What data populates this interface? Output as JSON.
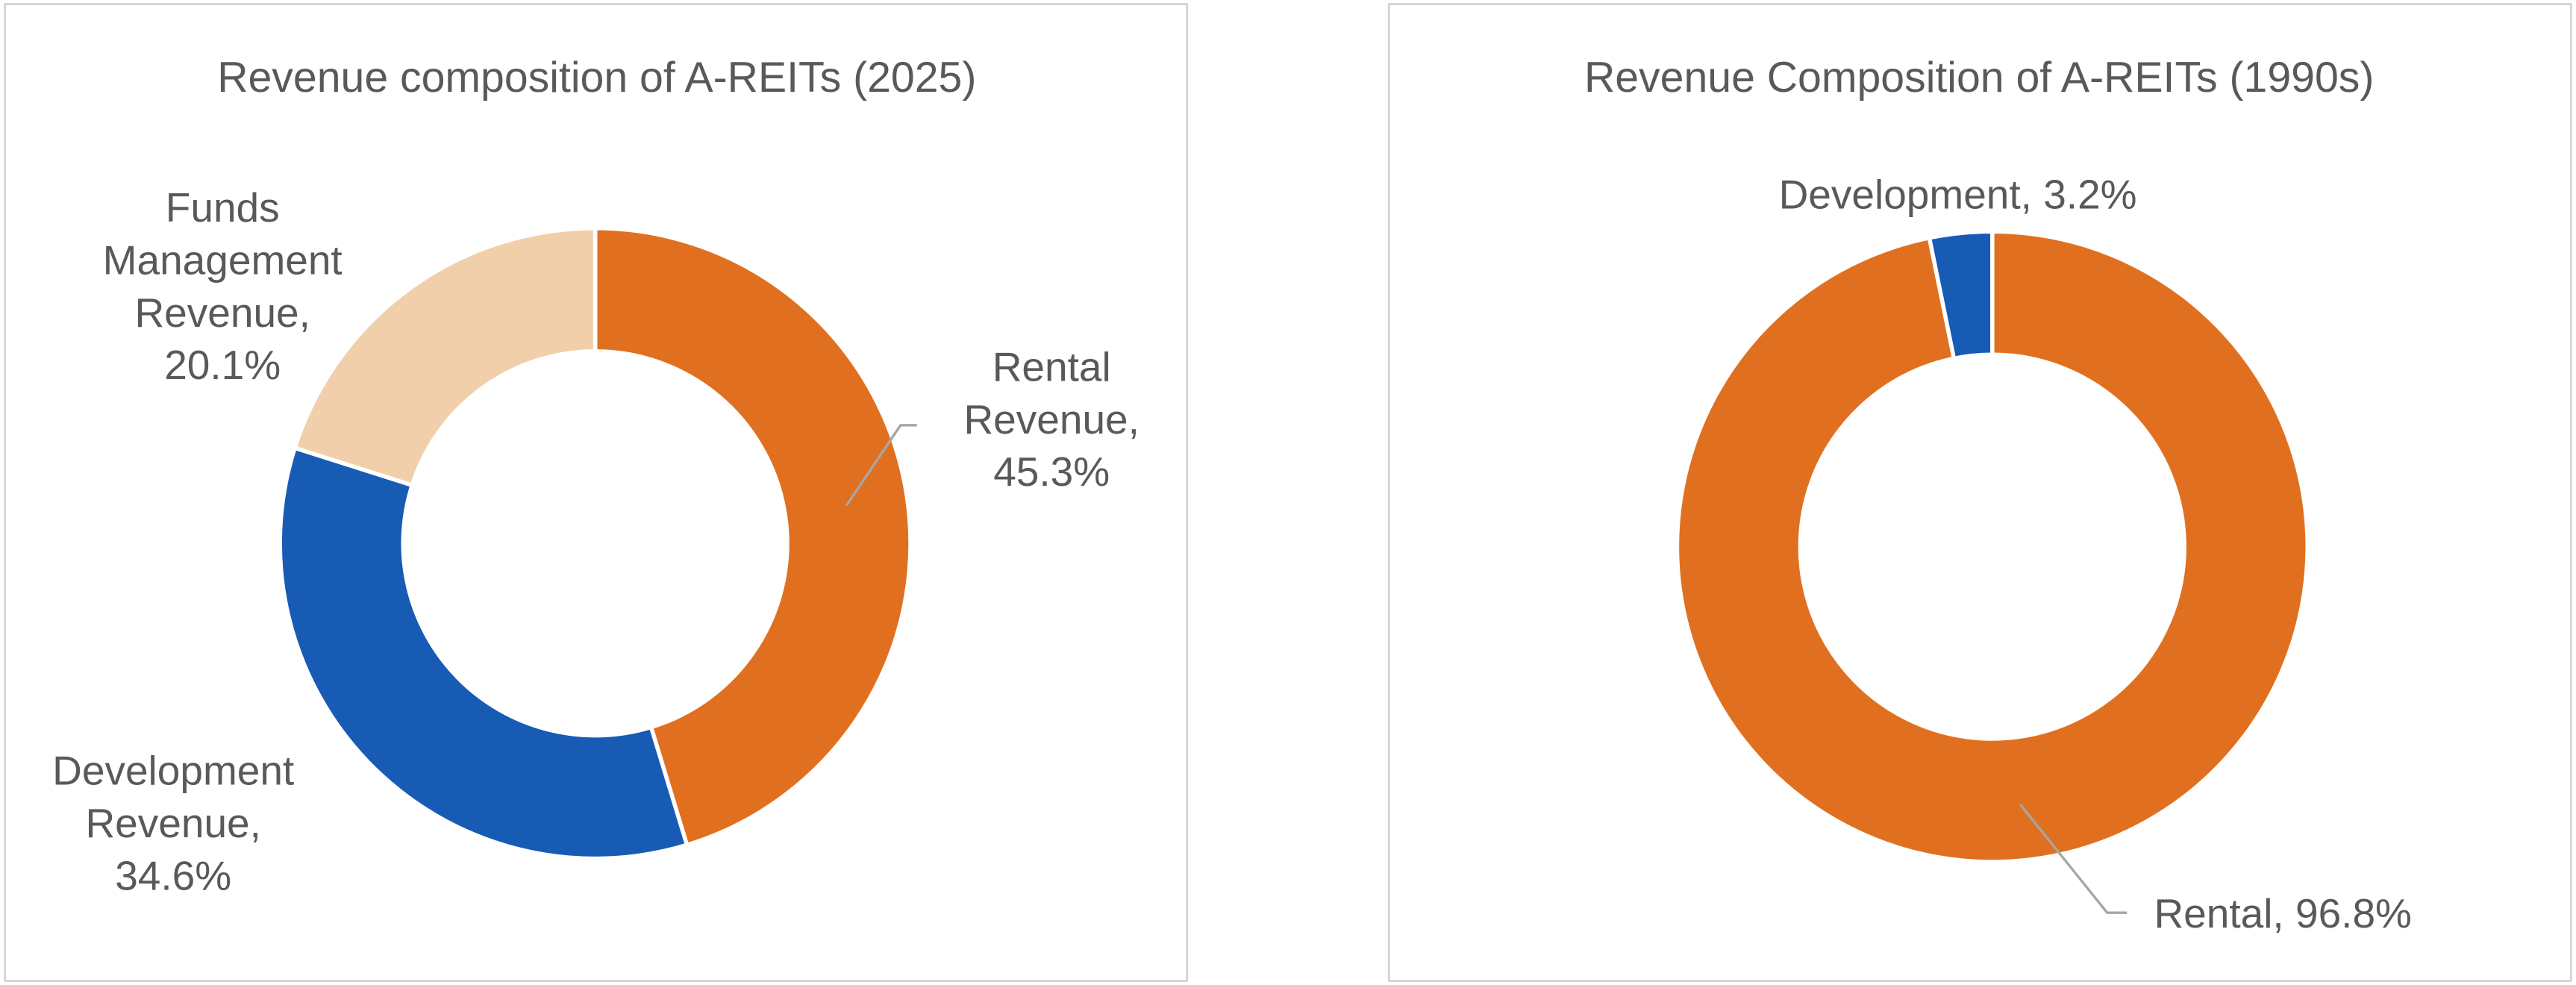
{
  "chart_data": [
    {
      "type": "pie",
      "variant": "donut",
      "title": "Revenue composition of A-REITs (2025)",
      "categories": [
        "Rental Revenue",
        "Development Revenue",
        "Funds Management Revenue"
      ],
      "values": [
        45.3,
        34.6,
        20.1
      ],
      "unit": "%",
      "colors": [
        "#E07020",
        "#175BB5",
        "#F1CFAB"
      ],
      "data_labels": [
        [
          "Rental",
          "Revenue,",
          "45.3%"
        ],
        [
          "Development",
          "Revenue,",
          "34.6%"
        ],
        [
          "Funds",
          "Management",
          "Revenue,",
          "20.1%"
        ]
      ],
      "legend": "none"
    },
    {
      "type": "pie",
      "variant": "donut",
      "title": "Revenue Composition of A-REITs (1990s)",
      "categories": [
        "Rental",
        "Development"
      ],
      "values": [
        96.8,
        3.2
      ],
      "unit": "%",
      "colors": [
        "#E07020",
        "#175BB5"
      ],
      "data_labels": [
        [
          "Rental, 96.8%"
        ],
        [
          "Development, 3.2%"
        ]
      ],
      "legend": "none"
    }
  ]
}
